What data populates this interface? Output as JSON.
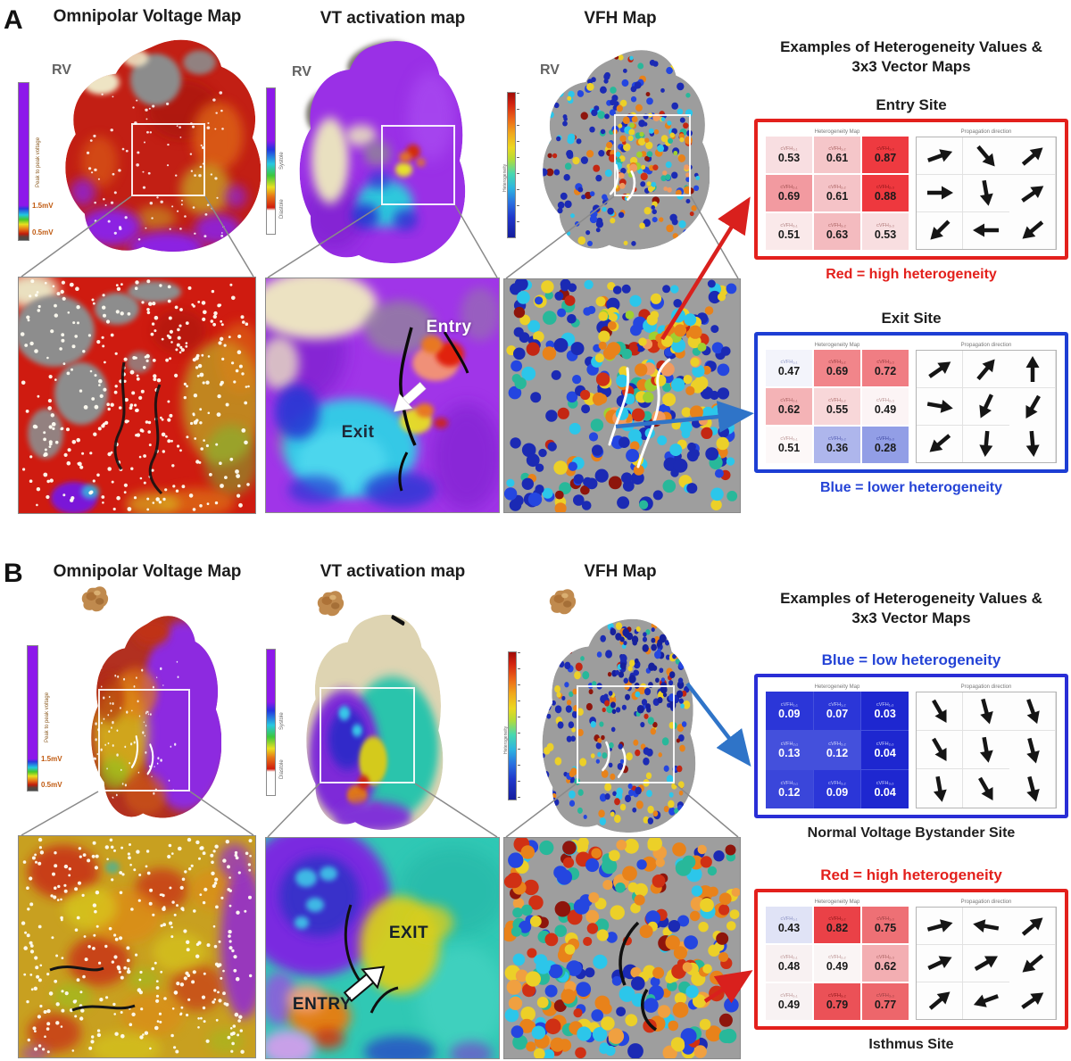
{
  "panelA": {
    "letter": "A",
    "map_titles": [
      "Omnipolar Voltage Map",
      "VT activation map",
      "VFH Map"
    ],
    "corner_labels": [
      "RV",
      "RV",
      "RV"
    ],
    "inset_entry_label": "Entry",
    "inset_exit_label": "Exit",
    "examples_title": "Examples of Heterogeneity Values & 3x3 Vector Maps"
  },
  "panelB": {
    "letter": "B",
    "map_titles": [
      "Omnipolar Voltage Map",
      "VT activation map",
      "VFH Map"
    ],
    "inset_entry_label": "ENTRY",
    "inset_exit_label": "EXIT",
    "examples_title": "Examples of Heterogeneity Values & 3x3 Vector Maps"
  },
  "colorbars": {
    "voltage": {
      "label": "Peak to peak voltage",
      "tick_top": "1.5mV",
      "tick_bottom": "0.5mV"
    },
    "activation": {
      "label_top": "Systole",
      "label_bottom": "Diastole"
    },
    "vfh": {
      "label": "Heterogeneity"
    }
  },
  "colors": {
    "red_accent": "#e3201c",
    "blue_accent": "#1d3ed4",
    "arrow_red": "#d9201d",
    "arrow_blue": "#2f74c8"
  },
  "cards": [
    {
      "title": {
        "text": "Entry Site",
        "color": "#1f1f1f"
      },
      "accent": "#e3201c",
      "grid_title": "Heterogeneity Map",
      "vector_title": "Propagation direction",
      "caption": {
        "text": "Red = high heterogeneity",
        "color": "#e3201c"
      },
      "cells": [
        {
          "label": "cVFH₁,₁",
          "value": "0.53",
          "bg": "#f8dee1",
          "lfg": "#b07878",
          "vfg": "#1b1b1b"
        },
        {
          "label": "cVFH₁,₂",
          "value": "0.61",
          "bg": "#f5c6c9",
          "lfg": "#a86060",
          "vfg": "#1b1b1b"
        },
        {
          "label": "cVFH₁,₃",
          "value": "0.87",
          "bg": "#ee3a40",
          "lfg": "#8c1418",
          "vfg": "#1b1b1b"
        },
        {
          "label": "cVFH₂,₁",
          "value": "0.69",
          "bg": "#f29aa0",
          "lfg": "#a05050",
          "vfg": "#1b1b1b"
        },
        {
          "label": "cVFH₂,₂",
          "value": "0.61",
          "bg": "#f5c3c7",
          "lfg": "#a86060",
          "vfg": "#1b1b1b"
        },
        {
          "label": "cVFH₂,₃",
          "value": "0.88",
          "bg": "#ee383e",
          "lfg": "#8c1418",
          "vfg": "#1b1b1b"
        },
        {
          "label": "cVFH₃,₁",
          "value": "0.51",
          "bg": "#fae9ea",
          "lfg": "#b08080",
          "vfg": "#1b1b1b"
        },
        {
          "label": "cVFH₃,₂",
          "value": "0.63",
          "bg": "#f4bbbf",
          "lfg": "#a86060",
          "vfg": "#1b1b1b"
        },
        {
          "label": "cVFH₃,₃",
          "value": "0.53",
          "bg": "#f8dee0",
          "lfg": "#b07878",
          "vfg": "#1b1b1b"
        }
      ],
      "arrows": [
        {
          "deg": -20
        },
        {
          "deg": 50
        },
        {
          "deg": -40
        },
        {
          "deg": 0
        },
        {
          "deg": 80
        },
        {
          "deg": -35
        },
        {
          "deg": 135
        },
        {
          "deg": 180
        },
        {
          "deg": 140
        }
      ]
    },
    {
      "title": {
        "text": "Exit Site",
        "color": "#1f1f1f"
      },
      "accent": "#1d3ed4",
      "grid_title": "Heterogeneity Map",
      "vector_title": "Propagation direction",
      "caption": {
        "text": "Blue = lower heterogeneity",
        "color": "#2443d6"
      },
      "cells": [
        {
          "label": "cVFH₁,₁",
          "value": "0.47",
          "bg": "#f3f4fb",
          "lfg": "#9098c8",
          "vfg": "#1b1b1b"
        },
        {
          "label": "cVFH₁,₂",
          "value": "0.69",
          "bg": "#f1858a",
          "lfg": "#983c40",
          "vfg": "#1b1b1b"
        },
        {
          "label": "cVFH₁,₃",
          "value": "0.72",
          "bg": "#f07d83",
          "lfg": "#983c40",
          "vfg": "#1b1b1b"
        },
        {
          "label": "cVFH₂,₁",
          "value": "0.62",
          "bg": "#f4b3b6",
          "lfg": "#a86060",
          "vfg": "#1b1b1b"
        },
        {
          "label": "cVFH₂,₂",
          "value": "0.55",
          "bg": "#f8d7d9",
          "lfg": "#b07070",
          "vfg": "#1b1b1b"
        },
        {
          "label": "cVFH₂,₃",
          "value": "0.49",
          "bg": "#fcf4f5",
          "lfg": "#b89090",
          "vfg": "#1b1b1b"
        },
        {
          "label": "cVFH₃,₁",
          "value": "0.51",
          "bg": "#fdf8f8",
          "lfg": "#b89090",
          "vfg": "#1b1b1b"
        },
        {
          "label": "cVFH₃,₂",
          "value": "0.36",
          "bg": "#aeb6ec",
          "lfg": "#5058b0",
          "vfg": "#1b1b1b"
        },
        {
          "label": "cVFH₃,₃",
          "value": "0.28",
          "bg": "#929ee6",
          "lfg": "#3c46a0",
          "vfg": "#1b1b1b"
        }
      ],
      "arrows": [
        {
          "deg": -35
        },
        {
          "deg": -50
        },
        {
          "deg": -90
        },
        {
          "deg": 10
        },
        {
          "deg": 115
        },
        {
          "deg": 120
        },
        {
          "deg": 140
        },
        {
          "deg": 95
        },
        {
          "deg": 85
        }
      ]
    },
    {
      "title": {
        "text": "Blue = low heterogeneity",
        "color": "#2443d6"
      },
      "accent": "#2a2ed6",
      "grid_title": "Heterogeneity Map",
      "vector_title": "Propagation direction",
      "caption": {
        "text": "Normal Voltage Bystander Site",
        "color": "#1f1f1f"
      },
      "cells": [
        {
          "label": "cVFH₁,₁",
          "value": "0.09",
          "bg": "#2b36d8",
          "lfg": "#cdd3f8",
          "vfg": "#ffffff"
        },
        {
          "label": "cVFH₁,₂",
          "value": "0.07",
          "bg": "#2b36d8",
          "lfg": "#cdd3f8",
          "vfg": "#ffffff"
        },
        {
          "label": "cVFH₁,₃",
          "value": "0.03",
          "bg": "#1e27d0",
          "lfg": "#cdd3f8",
          "vfg": "#ffffff"
        },
        {
          "label": "cVFH₂,₁",
          "value": "0.13",
          "bg": "#4450dc",
          "lfg": "#d8dcfa",
          "vfg": "#ffffff"
        },
        {
          "label": "cVFH₂,₂",
          "value": "0.12",
          "bg": "#4450dc",
          "lfg": "#d8dcfa",
          "vfg": "#ffffff"
        },
        {
          "label": "cVFH₂,₃",
          "value": "0.04",
          "bg": "#1e27d0",
          "lfg": "#cdd3f8",
          "vfg": "#ffffff"
        },
        {
          "label": "cVFH₃,₁",
          "value": "0.12",
          "bg": "#3a46da",
          "lfg": "#d0d5f9",
          "vfg": "#ffffff"
        },
        {
          "label": "cVFH₃,₂",
          "value": "0.09",
          "bg": "#2b36d8",
          "lfg": "#cdd3f8",
          "vfg": "#ffffff"
        },
        {
          "label": "cVFH₃,₃",
          "value": "0.04",
          "bg": "#1e27d0",
          "lfg": "#cdd3f8",
          "vfg": "#ffffff"
        }
      ],
      "arrows": [
        {
          "deg": 60
        },
        {
          "deg": 75
        },
        {
          "deg": 70
        },
        {
          "deg": 60
        },
        {
          "deg": 80
        },
        {
          "deg": 75
        },
        {
          "deg": 80
        },
        {
          "deg": 60
        },
        {
          "deg": 75
        }
      ]
    },
    {
      "title": {
        "text": "Red = high heterogeneity",
        "color": "#e3201c"
      },
      "accent": "#e3201c",
      "grid_title": "Heterogeneity Map",
      "vector_title": "Propagation direction",
      "caption": {
        "text": "Isthmus Site",
        "color": "#1f1f1f"
      },
      "cells": [
        {
          "label": "cVFH₁,₁",
          "value": "0.43",
          "bg": "#e0e3f6",
          "lfg": "#8a90c4",
          "vfg": "#1b1b1b"
        },
        {
          "label": "cVFH₁,₂",
          "value": "0.82",
          "bg": "#ea4147",
          "lfg": "#8c1418",
          "vfg": "#1b1b1b"
        },
        {
          "label": "cVFH₁,₃",
          "value": "0.75",
          "bg": "#ee7075",
          "lfg": "#983c40",
          "vfg": "#1b1b1b"
        },
        {
          "label": "cVFH₂,₁",
          "value": "0.48",
          "bg": "#f8f1f2",
          "lfg": "#b89090",
          "vfg": "#1b1b1b"
        },
        {
          "label": "cVFH₂,₂",
          "value": "0.49",
          "bg": "#faf5f5",
          "lfg": "#b89090",
          "vfg": "#1b1b1b"
        },
        {
          "label": "cVFH₂,₃",
          "value": "0.62",
          "bg": "#f3aeb2",
          "lfg": "#a86060",
          "vfg": "#1b1b1b"
        },
        {
          "label": "cVFH₃,₁",
          "value": "0.49",
          "bg": "#f8f2f3",
          "lfg": "#b89090",
          "vfg": "#1b1b1b"
        },
        {
          "label": "cVFH₃,₂",
          "value": "0.79",
          "bg": "#eb5157",
          "lfg": "#8c1418",
          "vfg": "#1b1b1b"
        },
        {
          "label": "cVFH₃,₃",
          "value": "0.77",
          "bg": "#ed666b",
          "lfg": "#983c40",
          "vfg": "#1b1b1b"
        }
      ],
      "arrows": [
        {
          "deg": -15
        },
        {
          "deg": 190
        },
        {
          "deg": -40
        },
        {
          "deg": -25
        },
        {
          "deg": -30
        },
        {
          "deg": 140
        },
        {
          "deg": -40
        },
        {
          "deg": 160
        },
        {
          "deg": -35
        }
      ]
    }
  ]
}
